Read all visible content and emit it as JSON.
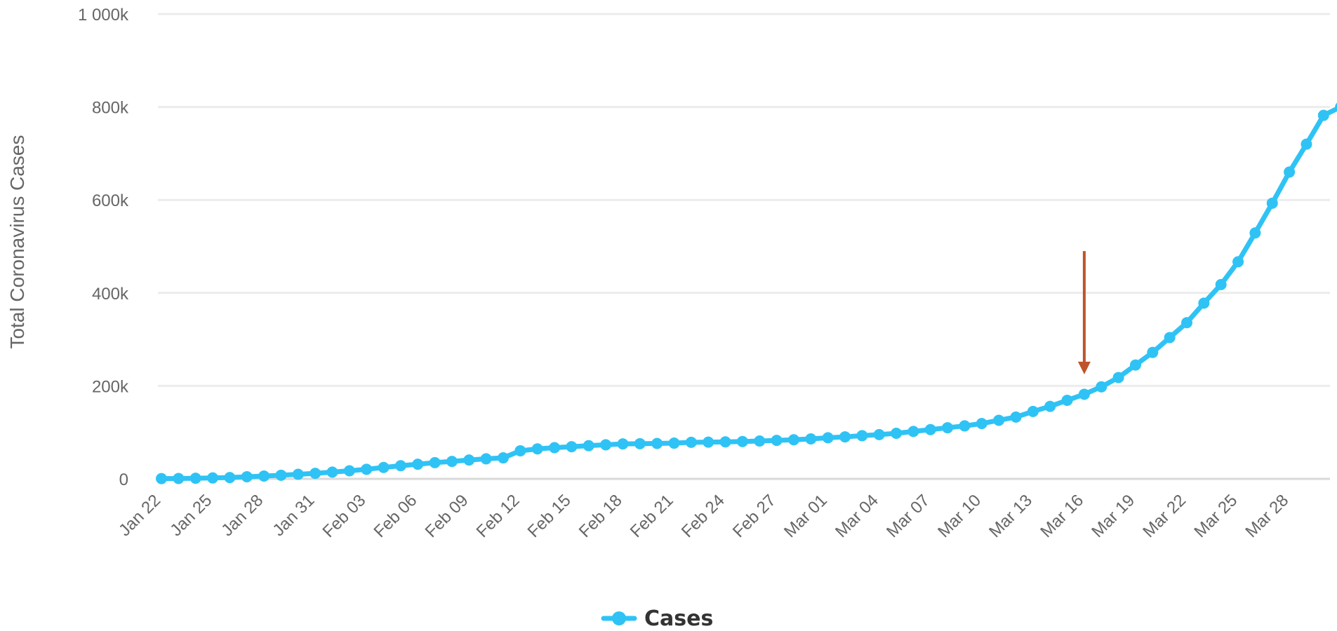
{
  "chart_data": {
    "type": "line",
    "ylabel": "Total Coronavirus Cases",
    "ylim": [
      0,
      1000000
    ],
    "y_ticks": [
      {
        "value": 0,
        "label": "0"
      },
      {
        "value": 200000,
        "label": "200k"
      },
      {
        "value": 400000,
        "label": "400k"
      },
      {
        "value": 600000,
        "label": "600k"
      },
      {
        "value": 800000,
        "label": "800k"
      },
      {
        "value": 1000000,
        "label": "1 000k"
      }
    ],
    "grid": true,
    "legend_position": "bottom-center",
    "x_tick_labels": [
      "Jan 22",
      "Jan 25",
      "Jan 28",
      "Jan 31",
      "Feb 03",
      "Feb 06",
      "Feb 09",
      "Feb 12",
      "Feb 15",
      "Feb 18",
      "Feb 21",
      "Feb 24",
      "Feb 27",
      "Mar 01",
      "Mar 04",
      "Mar 07",
      "Mar 10",
      "Mar 13",
      "Mar 16",
      "Mar 19",
      "Mar 22",
      "Mar 25",
      "Mar 28"
    ],
    "series": [
      {
        "name": "Cases",
        "color": "#2fc3f5",
        "x": [
          "Jan 22",
          "Jan 23",
          "Jan 24",
          "Jan 25",
          "Jan 26",
          "Jan 27",
          "Jan 28",
          "Jan 29",
          "Jan 30",
          "Jan 31",
          "Feb 01",
          "Feb 02",
          "Feb 03",
          "Feb 04",
          "Feb 05",
          "Feb 06",
          "Feb 07",
          "Feb 08",
          "Feb 09",
          "Feb 10",
          "Feb 11",
          "Feb 12",
          "Feb 13",
          "Feb 14",
          "Feb 15",
          "Feb 16",
          "Feb 17",
          "Feb 18",
          "Feb 19",
          "Feb 20",
          "Feb 21",
          "Feb 22",
          "Feb 23",
          "Feb 24",
          "Feb 25",
          "Feb 26",
          "Feb 27",
          "Feb 28",
          "Feb 29",
          "Mar 01",
          "Mar 02",
          "Mar 03",
          "Mar 04",
          "Mar 05",
          "Mar 06",
          "Mar 07",
          "Mar 08",
          "Mar 09",
          "Mar 10",
          "Mar 11",
          "Mar 12",
          "Mar 13",
          "Mar 14",
          "Mar 15",
          "Mar 16",
          "Mar 17",
          "Mar 18",
          "Mar 19",
          "Mar 20",
          "Mar 21",
          "Mar 22",
          "Mar 23",
          "Mar 24",
          "Mar 25",
          "Mar 26",
          "Mar 27",
          "Mar 28",
          "Mar 29",
          "Mar 30",
          "Mar 31"
        ],
        "values": [
          580,
          845,
          1320,
          2010,
          2800,
          4580,
          6060,
          7820,
          9830,
          11900,
          14550,
          17390,
          20630,
          24550,
          28280,
          31480,
          34880,
          37560,
          40550,
          43110,
          45180,
          60380,
          64450,
          67100,
          69200,
          71400,
          73280,
          75150,
          75650,
          76200,
          76840,
          78600,
          78990,
          79560,
          80400,
          81400,
          82740,
          84120,
          86000,
          88400,
          90400,
          92900,
          95200,
          98000,
          102000,
          106000,
          110000,
          114000,
          119000,
          126000,
          133000,
          145000,
          156000,
          169000,
          182000,
          198000,
          218000,
          245000,
          272000,
          304000,
          336000,
          378000,
          418000,
          467000,
          529000,
          593000,
          660000,
          720000,
          782000,
          800000
        ]
      }
    ],
    "annotations": [
      {
        "type": "arrow",
        "color": "#c0532a",
        "x": "Mar 16",
        "from_value": 490000,
        "to_value": 225000
      }
    ],
    "legend": {
      "label": "Cases"
    }
  }
}
